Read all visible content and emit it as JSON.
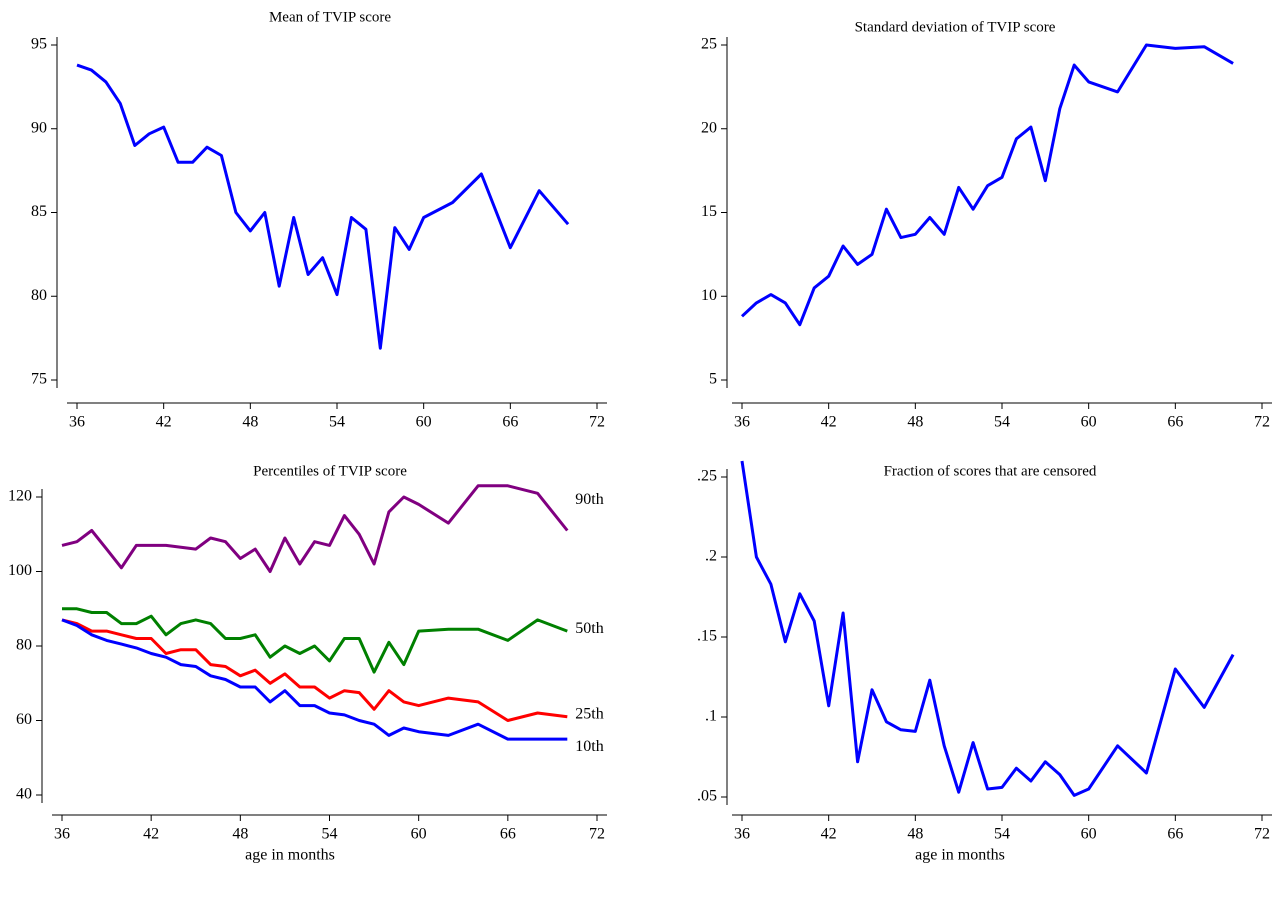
{
  "chart_data": [
    {
      "type": "line",
      "title": "Mean of TVIP score",
      "x": [
        36,
        37,
        38,
        39,
        40,
        41,
        42,
        43,
        44,
        45,
        46,
        47,
        48,
        49,
        50,
        51,
        52,
        53,
        54,
        55,
        56,
        57,
        58,
        59,
        60,
        62,
        64,
        66,
        68,
        70
      ],
      "series": [
        {
          "name": "Mean",
          "color": "#0000ff",
          "values": [
            93.8,
            93.5,
            92.8,
            91.5,
            89.0,
            89.7,
            90.1,
            88.0,
            88.0,
            88.9,
            88.4,
            85.0,
            83.9,
            85.0,
            80.6,
            84.7,
            81.3,
            82.3,
            80.1,
            84.7,
            84.0,
            76.9,
            84.1,
            82.8,
            84.7,
            85.6,
            87.3,
            82.9,
            86.3,
            84.3
          ]
        }
      ],
      "xlim": [
        36,
        72
      ],
      "xticks": [
        36,
        42,
        48,
        54,
        60,
        66,
        72
      ],
      "ylim": [
        75,
        95
      ],
      "yticks": [
        75,
        80,
        85,
        90,
        95
      ]
    },
    {
      "type": "line",
      "title": "Standard deviation of TVIP score",
      "x": [
        36,
        37,
        38,
        39,
        40,
        41,
        42,
        43,
        44,
        45,
        46,
        47,
        48,
        49,
        50,
        51,
        52,
        53,
        54,
        55,
        56,
        57,
        58,
        59,
        60,
        62,
        64,
        66,
        68,
        70
      ],
      "series": [
        {
          "name": "Standard deviation",
          "color": "#0000ff",
          "values": [
            8.8,
            9.6,
            10.1,
            9.6,
            8.3,
            10.5,
            11.2,
            13.0,
            11.9,
            12.5,
            15.2,
            13.5,
            13.7,
            14.7,
            13.7,
            16.5,
            15.2,
            16.6,
            17.1,
            19.4,
            20.1,
            16.9,
            21.2,
            23.8,
            22.8,
            22.2,
            25.0,
            24.8,
            24.9,
            23.9
          ]
        }
      ],
      "xlim": [
        36,
        72
      ],
      "xticks": [
        36,
        42,
        48,
        54,
        60,
        66,
        72
      ],
      "ylim": [
        5,
        25
      ],
      "yticks": [
        5,
        10,
        15,
        20,
        25
      ]
    },
    {
      "type": "line",
      "title": "Percentiles of TVIP score",
      "xlabel": "age in months",
      "end_labels": true,
      "x": [
        36,
        37,
        38,
        39,
        40,
        41,
        42,
        43,
        44,
        45,
        46,
        47,
        48,
        49,
        50,
        51,
        52,
        53,
        54,
        55,
        56,
        57,
        58,
        59,
        60,
        62,
        64,
        66,
        68,
        70
      ],
      "series": [
        {
          "name": "90th",
          "color": "#800080",
          "values": [
            107,
            108,
            111,
            106,
            101,
            107,
            107,
            107,
            106.5,
            106,
            109,
            108,
            103.5,
            106,
            100,
            109,
            102,
            108,
            107,
            115,
            110,
            102,
            116,
            120,
            118,
            113,
            123,
            123,
            121,
            111
          ]
        },
        {
          "name": "50th",
          "color": "#008000",
          "values": [
            90,
            90,
            89,
            89,
            86,
            86,
            88,
            83,
            86,
            87,
            86,
            82,
            82,
            83,
            77,
            80,
            78,
            80,
            76,
            82,
            82,
            73,
            81,
            75,
            84,
            84.5,
            84.5,
            81.5,
            87,
            84
          ]
        },
        {
          "name": "25th",
          "color": "#ff0000",
          "values": [
            87,
            86,
            84,
            84,
            83,
            82,
            82,
            78,
            79,
            79,
            75,
            74.5,
            72,
            73.5,
            70,
            72.5,
            69,
            69,
            66,
            68,
            67.5,
            63,
            68,
            65,
            64,
            66,
            65,
            60,
            62,
            61
          ]
        },
        {
          "name": "10th",
          "color": "#0000ff",
          "values": [
            87,
            85.5,
            83,
            81.5,
            80.5,
            79.5,
            78,
            77,
            75,
            74.5,
            72,
            71,
            69,
            69,
            65,
            68,
            64,
            64,
            62,
            61.5,
            60,
            59,
            56,
            58,
            57,
            56,
            59,
            55,
            55,
            55
          ]
        }
      ],
      "xlim": [
        36,
        72
      ],
      "xticks": [
        36,
        42,
        48,
        54,
        60,
        66,
        72
      ],
      "ylim": [
        40,
        120
      ],
      "yticks": [
        40,
        60,
        80,
        100,
        120
      ]
    },
    {
      "type": "line",
      "title": "Fraction of scores that are censored",
      "xlabel": "age in months",
      "x": [
        36,
        37,
        38,
        39,
        40,
        41,
        42,
        43,
        44,
        45,
        46,
        47,
        48,
        49,
        50,
        51,
        52,
        53,
        54,
        55,
        56,
        57,
        58,
        59,
        60,
        62,
        64,
        66,
        68,
        70
      ],
      "series": [
        {
          "name": "Fraction censored",
          "color": "#0000ff",
          "values": [
            0.26,
            0.2,
            0.183,
            0.147,
            0.177,
            0.16,
            0.107,
            0.165,
            0.072,
            0.117,
            0.097,
            0.092,
            0.091,
            0.123,
            0.082,
            0.053,
            0.084,
            0.055,
            0.056,
            0.068,
            0.06,
            0.072,
            0.064,
            0.051,
            0.055,
            0.082,
            0.065,
            0.13,
            0.106,
            0.139
          ]
        }
      ],
      "xlim": [
        36,
        72
      ],
      "xticks": [
        36,
        42,
        48,
        54,
        60,
        66,
        72
      ],
      "ylim": [
        0.05,
        0.25
      ],
      "yticks": [
        {
          "value": 0.05,
          "label": ".05"
        },
        {
          "value": 0.1,
          "label": ".1"
        },
        {
          "value": 0.15,
          "label": ".15"
        },
        {
          "value": 0.2,
          "label": ".2"
        },
        {
          "value": 0.25,
          "label": ".25"
        }
      ]
    }
  ]
}
